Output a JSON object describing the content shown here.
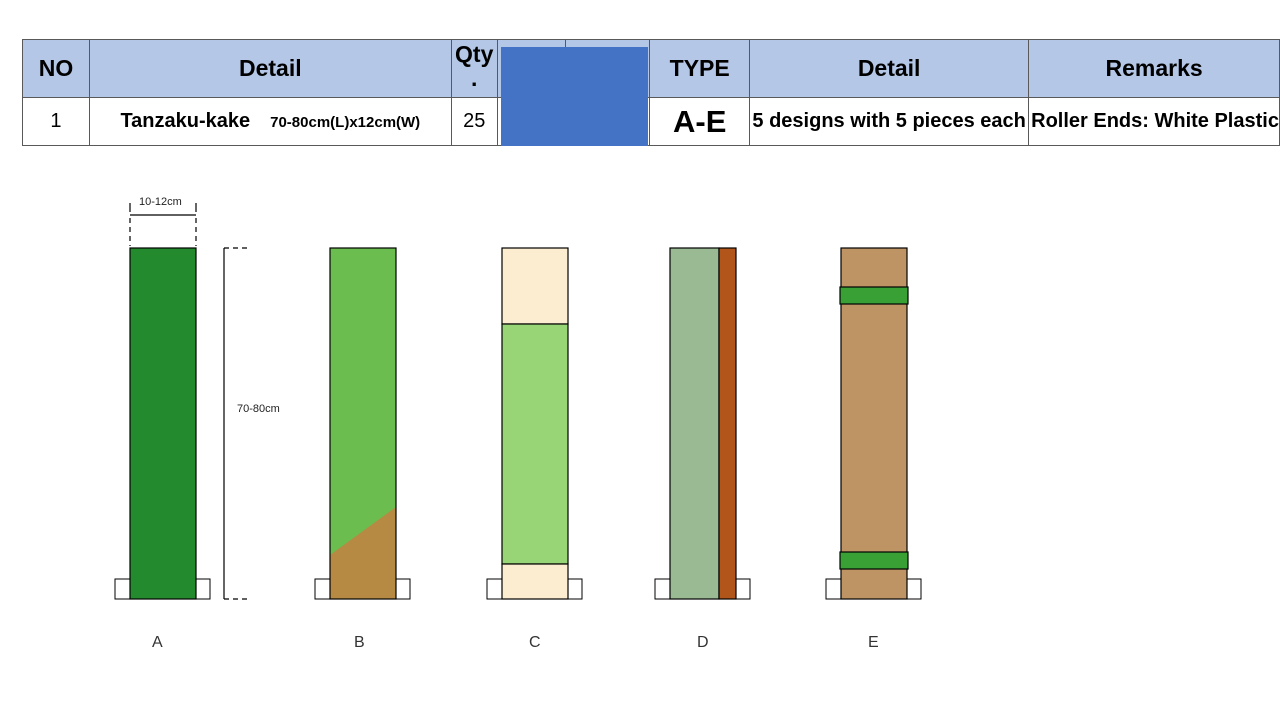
{
  "table": {
    "headers": {
      "no": "NO",
      "detail": "Detail",
      "qty": "Qty",
      "qty_mark": ".",
      "blank1": "",
      "blank2": "",
      "type": "TYPE",
      "detail2": "Detail",
      "remarks": "Remarks"
    },
    "row": {
      "no": "1",
      "item_name": "Tanzaku-kake",
      "item_dims": "70-80cm(L)x12cm(W)",
      "qty": "25",
      "type": "A-E",
      "detail2": "5 designs with 5 pieces each",
      "remarks": "Roller Ends: White Plastic"
    }
  },
  "diagram": {
    "width_label": "10-12cm",
    "height_label": "70-80cm",
    "designs": [
      {
        "label": "A",
        "colors": [
          "#238b2e"
        ]
      },
      {
        "label": "B",
        "colors": [
          "#6cbd50",
          "#b68a43"
        ]
      },
      {
        "label": "C",
        "colors": [
          "#fcecd0",
          "#98d576"
        ]
      },
      {
        "label": "D",
        "colors": [
          "#9aba94",
          "#b1551a"
        ]
      },
      {
        "label": "E",
        "colors": [
          "#be9464",
          "#38a035"
        ]
      }
    ]
  }
}
